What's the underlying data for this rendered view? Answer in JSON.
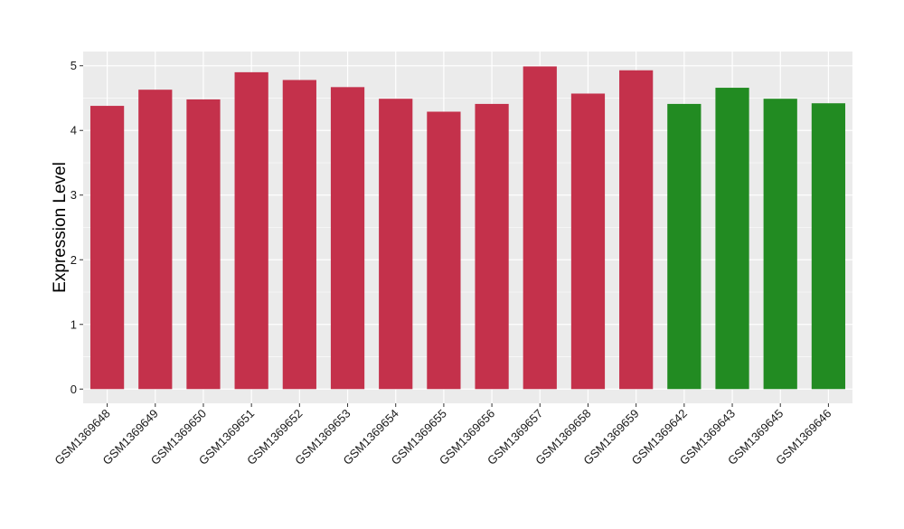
{
  "chart_data": {
    "type": "bar",
    "title": "",
    "xlabel": "",
    "ylabel": "Expression Level",
    "ylim": [
      -0.22,
      5.22
    ],
    "yticks": [
      0,
      1,
      2,
      3,
      4,
      5
    ],
    "grid": true,
    "categories": [
      "GSM1369648",
      "GSM1369649",
      "GSM1369650",
      "GSM1369651",
      "GSM1369652",
      "GSM1369653",
      "GSM1369654",
      "GSM1369655",
      "GSM1369656",
      "GSM1369657",
      "GSM1369658",
      "GSM1369659",
      "GSM1369642",
      "GSM1369643",
      "GSM1369645",
      "GSM1369646"
    ],
    "values": [
      4.38,
      4.63,
      4.48,
      4.9,
      4.78,
      4.67,
      4.49,
      4.29,
      4.41,
      4.99,
      4.57,
      4.93,
      4.41,
      4.66,
      4.49,
      4.42
    ],
    "bar_colors": [
      "#c4314b",
      "#c4314b",
      "#c4314b",
      "#c4314b",
      "#c4314b",
      "#c4314b",
      "#c4314b",
      "#c4314b",
      "#c4314b",
      "#c4314b",
      "#c4314b",
      "#c4314b",
      "#228b22",
      "#228b22",
      "#228b22",
      "#228b22"
    ],
    "panel_background": "#ebebeb",
    "grid_color": "#ffffff"
  }
}
